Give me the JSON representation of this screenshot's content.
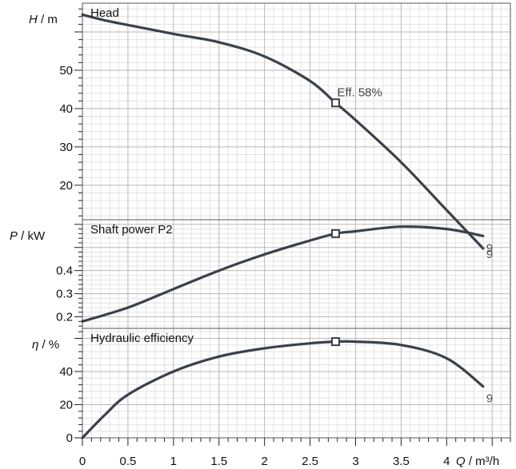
{
  "chart_data": {
    "type": "line",
    "x_axis": {
      "label_var": "Q",
      "label_unit": "/ m³/h",
      "ticks": [
        0,
        0.5,
        1,
        1.5,
        2,
        2.5,
        3,
        3.5,
        4
      ],
      "tick_labels": [
        "0",
        "0.5",
        "1",
        "1.5",
        "2",
        "2.5",
        "3",
        "3.5",
        "4"
      ],
      "range": [
        0,
        4.7
      ]
    },
    "grid": true,
    "panels": [
      {
        "title": "Head",
        "y_var": "H",
        "y_unit": "/ m",
        "ylim": [
          11,
          67.5
        ],
        "y_ticks": [
          20,
          30,
          40,
          50
        ],
        "y_tick_labels": [
          "20",
          "30",
          "40",
          "50"
        ],
        "curve_label": "9",
        "annotation": "Eff.  58%",
        "marker": {
          "x": 2.78,
          "y": 41.5
        },
        "series": {
          "x": [
            0,
            0.25,
            0.5,
            1.0,
            1.5,
            2.0,
            2.5,
            2.78,
            3.0,
            3.5,
            4.0,
            4.4
          ],
          "y": [
            64.5,
            63.0,
            61.8,
            59.5,
            57.3,
            53.6,
            47.2,
            41.5,
            37.0,
            26.0,
            13.5,
            3.5
          ]
        }
      },
      {
        "title": "Shaft power P2",
        "y_var": "P",
        "y_unit": "/ kW",
        "ylim": [
          0.15,
          0.62
        ],
        "y_ticks": [
          0.2,
          0.3,
          0.4
        ],
        "y_tick_labels": [
          "0.2",
          "0.3",
          "0.4"
        ],
        "curve_label": "9",
        "marker": {
          "x": 2.78,
          "y": 0.56
        },
        "series": {
          "x": [
            0,
            0.5,
            1.0,
            1.5,
            2.0,
            2.5,
            2.78,
            3.0,
            3.5,
            4.0,
            4.4
          ],
          "y": [
            0.18,
            0.24,
            0.32,
            0.4,
            0.47,
            0.53,
            0.56,
            0.57,
            0.59,
            0.58,
            0.55
          ]
        }
      },
      {
        "title": "Hydraulic efficiency",
        "y_var": "η",
        "y_unit": "/ %",
        "ylim": [
          0,
          66
        ],
        "y_ticks": [
          0,
          20,
          40
        ],
        "y_tick_labels": [
          "0",
          "20",
          "40"
        ],
        "curve_label": "9",
        "marker": {
          "x": 2.78,
          "y": 58
        },
        "series": {
          "x": [
            0,
            0.25,
            0.5,
            1.0,
            1.5,
            2.0,
            2.5,
            2.78,
            3.0,
            3.5,
            4.0,
            4.4
          ],
          "y": [
            0,
            14,
            26,
            40,
            49,
            54,
            57,
            58,
            58,
            56,
            48,
            31
          ]
        }
      }
    ]
  }
}
